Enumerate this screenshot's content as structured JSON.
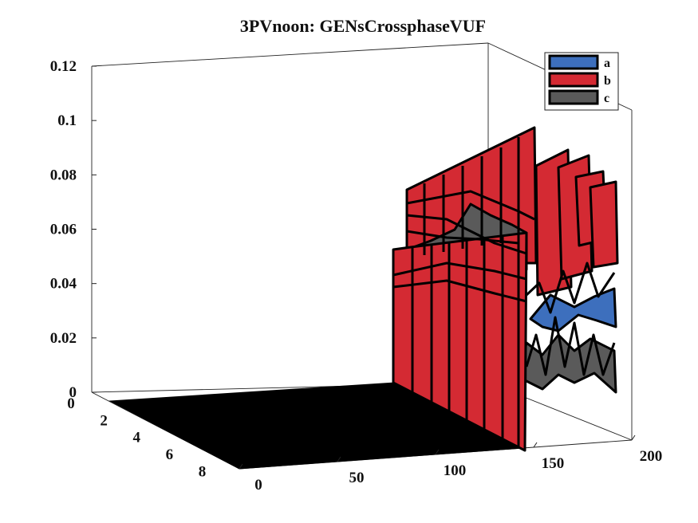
{
  "chart_data": {
    "type": "surface3d",
    "title": "3PVnoon: GENsCrossphaseVUF",
    "xlabel": "",
    "ylabel": "",
    "zlabel": "",
    "x_ticks": [
      "0",
      "50",
      "100",
      "150",
      "200"
    ],
    "y_ticks": [
      "0",
      "2",
      "4",
      "6",
      "8"
    ],
    "z_ticks": [
      "0",
      "0.02",
      "0.04",
      "0.06",
      "0.08",
      "0.1",
      "0.12"
    ],
    "xlim": [
      0,
      200
    ],
    "ylim": [
      0,
      9
    ],
    "zlim": [
      0,
      0.12
    ],
    "grid": false,
    "legend_position": "top-right",
    "series": [
      {
        "name": "a",
        "color": "#3d6fbd",
        "approx_max": 0.04
      },
      {
        "name": "b",
        "color": "#d42a33",
        "approx_max": 0.102
      },
      {
        "name": "c",
        "color": "#5a5a5a",
        "approx_max": 0.065
      }
    ],
    "floor_color": "#000000"
  }
}
